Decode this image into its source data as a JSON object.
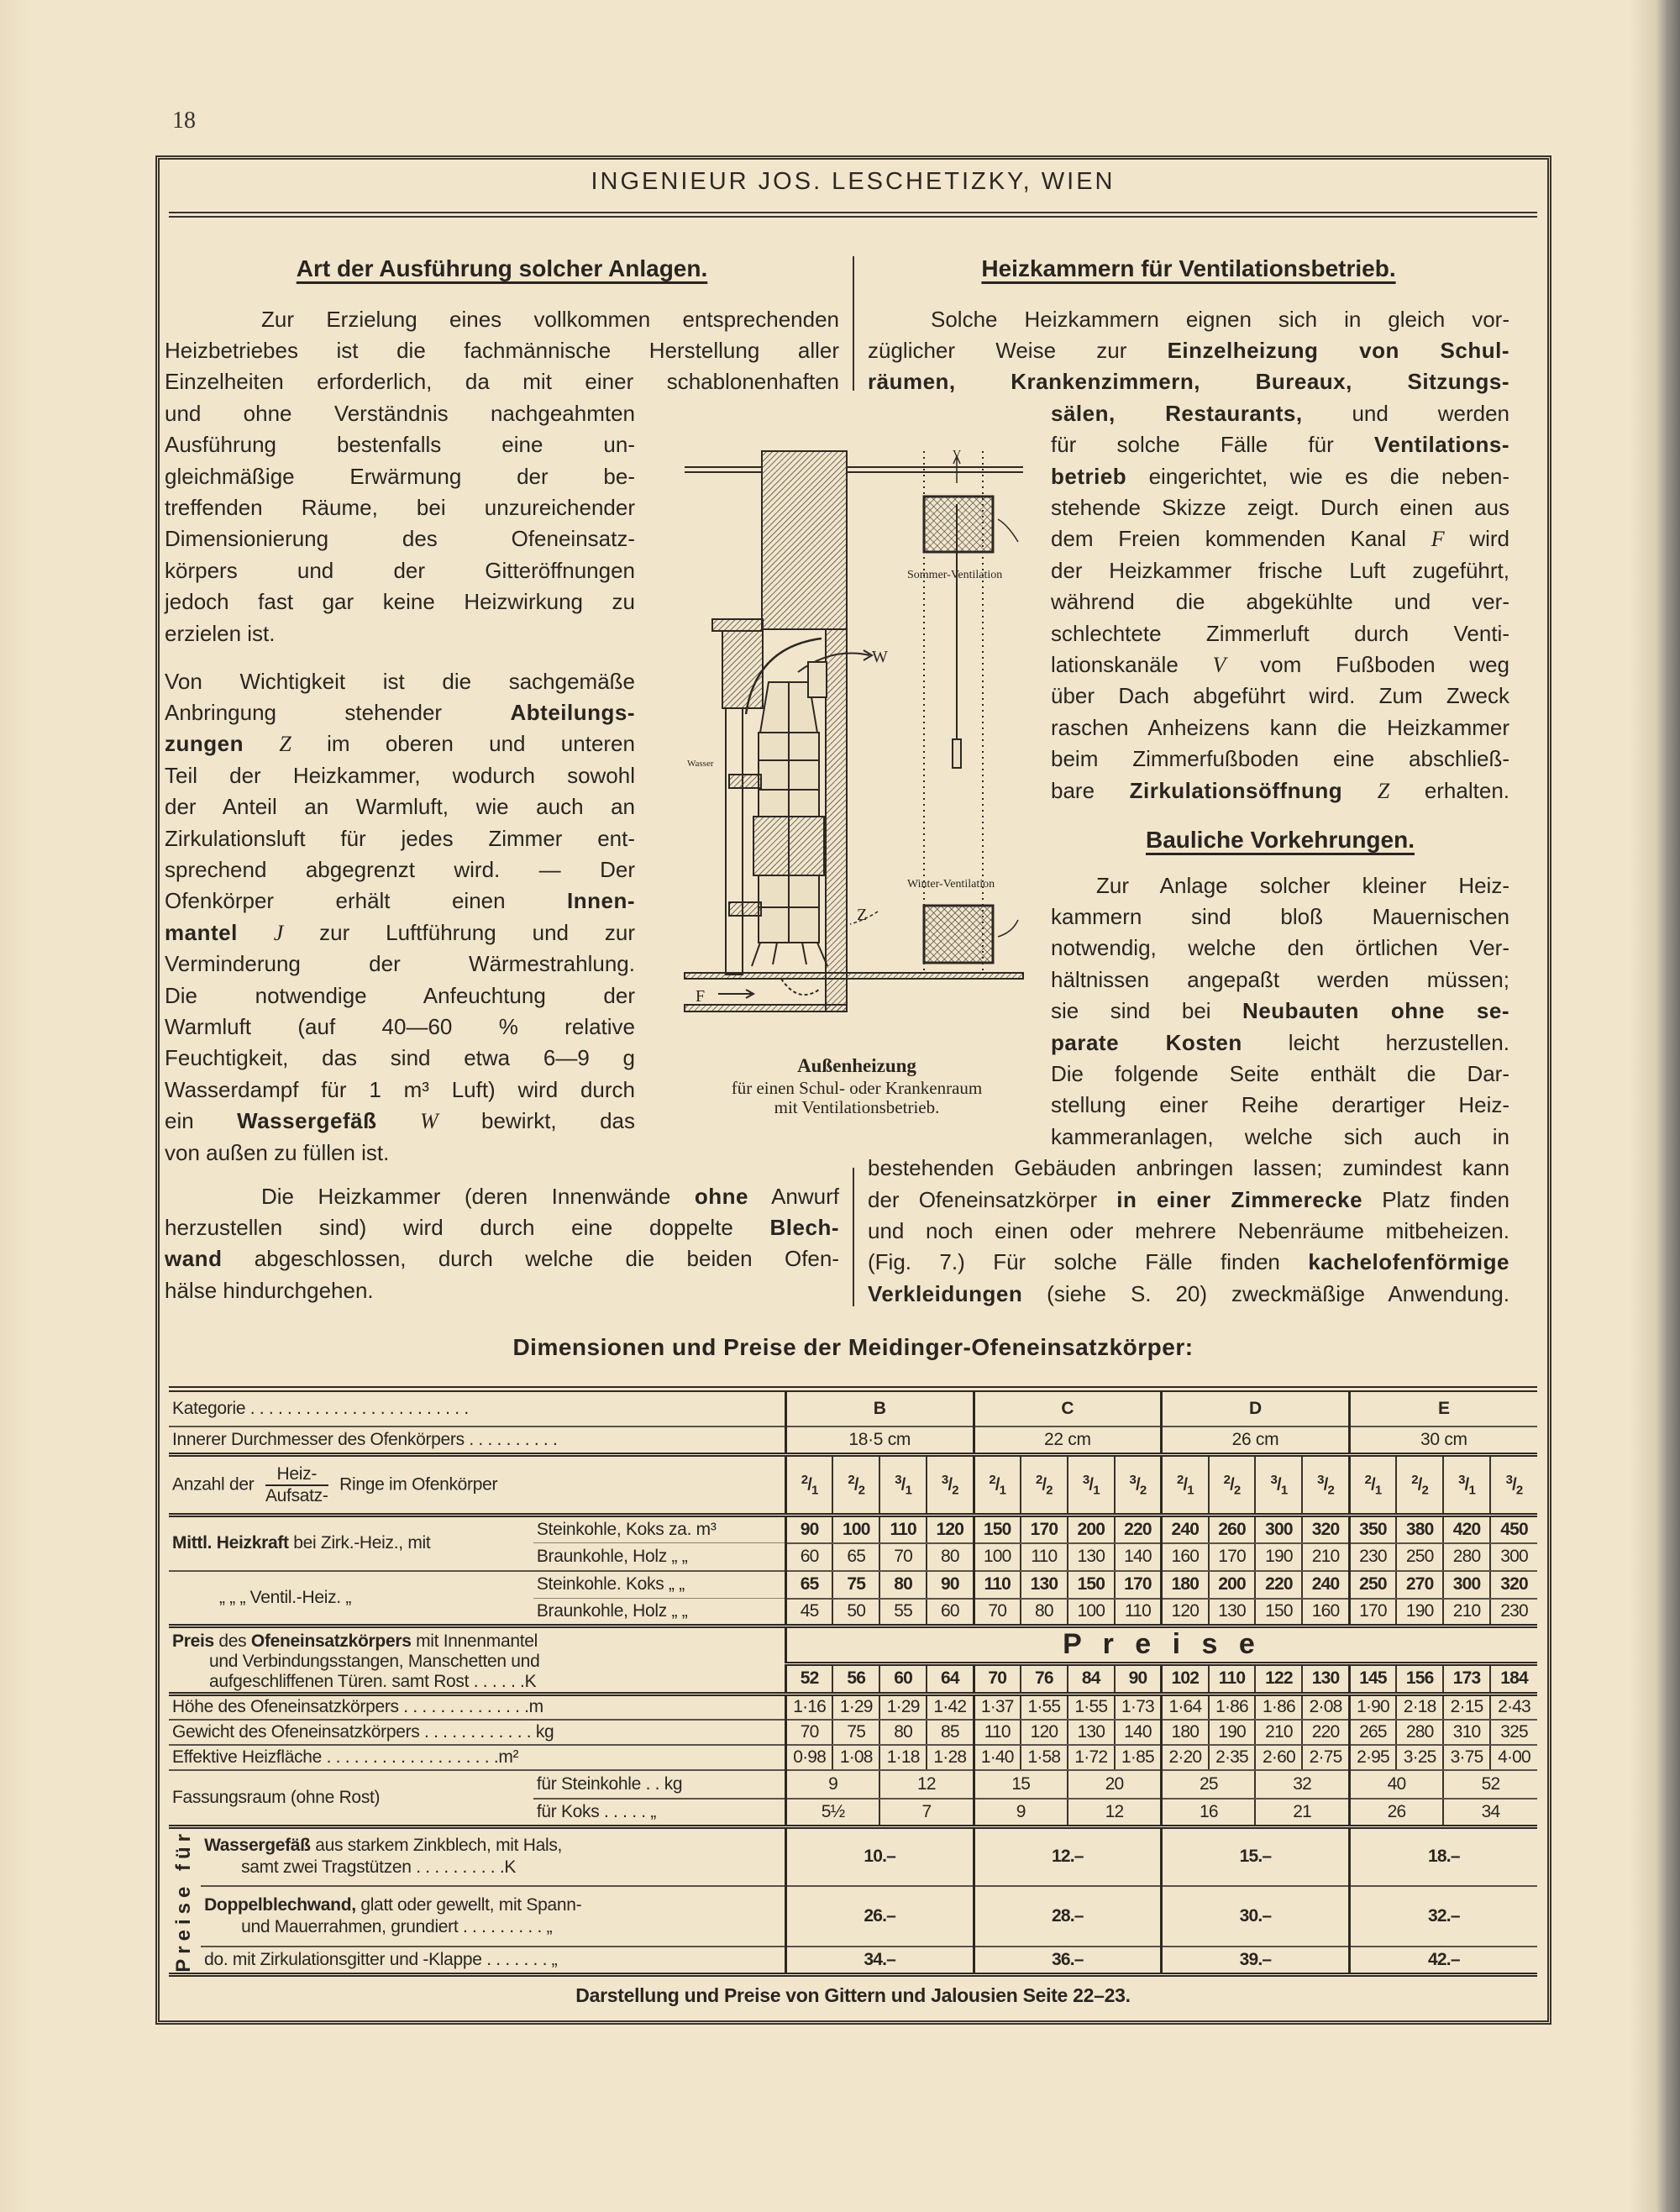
{
  "page_number": "18",
  "running_head": "INGENIEUR JOS. LESCHETIZKY, WIEN",
  "left_column": {
    "heading": "Art der Ausführung solcher Anlagen.",
    "paragraphs": [
      {
        "lines": [
          "Zur Erzielung eines vollkommen entsprechenden",
          "Heizbetriebes ist die fachmännische Herstellung aller",
          "Einzelheiten erforderlich, da mit einer schablonenhaften",
          "und ohne Verständnis nachgeahmten",
          "Ausführung bestenfalls eine un-",
          "gleichmäßige Erwärmung der be-",
          "treffenden Räume, bei unzureichender",
          "Dimensionierung des Ofeneinsatz-",
          "körpers und der Gitteröffnungen",
          "jedoch fast gar keine Heizwirkung zu",
          "erzielen ist."
        ]
      },
      {
        "lines": [
          "Von Wichtigkeit ist die sachgemäße",
          [
            "Anbringung stehender ",
            {
              "b": "Abteilungs-"
            }
          ],
          [
            {
              "b": "zungen"
            },
            " ",
            {
              "i": "Z"
            },
            " im oberen und unteren"
          ],
          "Teil der Heizkammer, wodurch sowohl",
          "der Anteil an Warmluft, wie auch an",
          "Zirkulationsluft für jedes Zimmer ent-",
          "sprechend abgegrenzt wird. — Der",
          [
            "Ofenkörper erhält einen ",
            {
              "b": "Innen-"
            }
          ],
          [
            {
              "b": "mantel"
            },
            " ",
            {
              "i": "J"
            },
            " zur Luftführung und zur"
          ],
          "Verminderung der Wärmestrahlung.",
          "Die notwendige Anfeuchtung der",
          "Warmluft (auf 40—60 % relative",
          "Feuchtigkeit, das sind etwa 6—9 g",
          "Wasserdampf für 1 m³ Luft) wird durch",
          [
            "ein ",
            {
              "b": "Wassergefäß"
            },
            " ",
            {
              "i": "W"
            },
            " bewirkt, das"
          ],
          "von außen zu füllen ist."
        ]
      },
      {
        "lines": [
          [
            "Die Heizkammer (deren Innenwände ",
            {
              "b": "ohne"
            },
            " Anwurf"
          ],
          [
            "herzustellen sind) wird durch eine doppelte ",
            {
              "b": "Blech-"
            }
          ],
          [
            {
              "b": "wand"
            },
            " abgeschlossen, durch welche die beiden Ofen-"
          ],
          "hälse hindurchgehen."
        ]
      }
    ]
  },
  "right_column": {
    "heading": "Heizkammern für Ventilationsbetrieb.",
    "paragraphs": [
      {
        "lines": [
          "Solche Heizkammern eignen sich in gleich vor-",
          [
            "züglicher Weise zur ",
            {
              "b": "Einzelheizung von Schul-"
            }
          ],
          [
            {
              "b": "räumen, Krankenzimmern, Bureaux, Sitzungs-"
            }
          ],
          [
            {
              "b": "sälen, Restaurants,"
            },
            " und werden"
          ],
          [
            "für solche Fälle für ",
            {
              "b": "Ventilations-"
            }
          ],
          [
            {
              "b": "betrieb"
            },
            " eingerichtet, wie es die neben-"
          ],
          "stehende Skizze zeigt. Durch einen aus",
          [
            "dem Freien kommenden Kanal ",
            {
              "i": "F"
            },
            " wird"
          ],
          "der Heizkammer frische Luft zugeführt,",
          "während die abgekühlte und ver-",
          "schlechtete Zimmerluft durch Venti-",
          [
            "lationskanäle ",
            {
              "i": "V"
            },
            " vom Fußboden weg"
          ],
          "über Dach abgeführt wird. Zum Zweck",
          "raschen Anheizens kann die Heizkammer",
          "beim Zimmerfußboden eine abschließ-",
          [
            "bare ",
            {
              "b": "Zirkulationsöffnung"
            },
            " ",
            {
              "i": "Z"
            },
            " erhalten."
          ]
        ]
      }
    ],
    "heading2": "Bauliche Vorkehrungen.",
    "paragraphs2": [
      {
        "lines": [
          "Zur Anlage solcher kleiner Heiz-",
          "kammern sind bloß Mauernischen",
          "notwendig, welche den örtlichen Ver-",
          "hältnissen angepaßt werden müssen;",
          [
            "sie sind bei ",
            {
              "b": "Neubauten ohne se-"
            }
          ],
          [
            {
              "b": "parate Kosten"
            },
            " leicht herzustellen."
          ],
          "Die folgende Seite enthält die Dar-",
          "stellung einer Reihe derartiger Heiz-",
          "kammeranlagen, welche sich auch in",
          "bestehenden Gebäuden anbringen lassen; zumindest kann",
          [
            "der Ofeneinsatzkörper ",
            {
              "b": "in einer Zimmerecke"
            },
            " Platz finden"
          ],
          "und noch einen oder mehrere Nebenräume mitbeheizen.",
          [
            "(Fig. 7.) Für solche Fälle finden ",
            {
              "b": "kachelofenförmige"
            }
          ],
          [
            {
              "b": "Verkleidungen"
            },
            " (siehe S. 20) zweckmäßige Anwendung."
          ]
        ]
      }
    ]
  },
  "figure": {
    "labels": {
      "v": "V",
      "w": "W",
      "z": "Z",
      "f": "F",
      "wasser": "Wasser",
      "summer": "Sommer-Ventilation",
      "winter": "Winter-Ventilation"
    },
    "caption_title": "Außenheizung",
    "caption_line1": "für einen Schul- oder Krankenraum",
    "caption_line2": "mit Ventilationsbetrieb."
  },
  "table": {
    "title": "Dimensionen und Preise der Meidinger-Ofeneinsatzkörper:",
    "kategorie_label": "Kategorie . . . . . . . . . . . . . . . .    . . . . . . . .",
    "categories": [
      "B",
      "C",
      "D",
      "E"
    ],
    "durchmesser_label": "Innerer Durchmesser des Ofenkörpers  . . . . . . . . . .",
    "durchmesser": [
      "18·5 cm",
      "22 cm",
      "26 cm",
      "30 cm"
    ],
    "anzahl_label": {
      "pre": "Anzahl der",
      "num": "Heiz-",
      "den": "Aufsatz-",
      "post": "Ringe im Ofenkörper"
    },
    "rings": [
      [
        "2",
        "1"
      ],
      [
        "2",
        "2"
      ],
      [
        "3",
        "1"
      ],
      [
        "3",
        "2"
      ]
    ],
    "heizkraft": {
      "zirk_label": [
        {
          "b": "Mittl. Heizkraft"
        },
        " bei Zirk.-Heiz., mit"
      ],
      "vent_label": "„        „        „ Ventil.-Heiz. „",
      "rows": [
        {
          "fuel": "Steinkohle, Koks za. m³",
          "bold": true,
          "values": [
            "90",
            "100",
            "110",
            "120",
            "150",
            "170",
            "200",
            "220",
            "240",
            "260",
            "300",
            "320",
            "350",
            "380",
            "420",
            "450"
          ]
        },
        {
          "fuel": "Braunkohle, Holz  „  „",
          "bold": false,
          "values": [
            "60",
            "65",
            "70",
            "80",
            "100",
            "110",
            "130",
            "140",
            "160",
            "170",
            "190",
            "210",
            "230",
            "250",
            "280",
            "300"
          ]
        },
        {
          "fuel": "Steinkohle.  Koks  „  „",
          "bold": true,
          "values": [
            "65",
            "75",
            "80",
            "90",
            "110",
            "130",
            "150",
            "170",
            "180",
            "200",
            "220",
            "240",
            "250",
            "270",
            "300",
            "320"
          ]
        },
        {
          "fuel": "Braunkohle, Holz  „  „",
          "bold": false,
          "values": [
            "45",
            "50",
            "55",
            "60",
            "70",
            "80",
            "100",
            "110",
            "120",
            "130",
            "150",
            "160",
            "170",
            "190",
            "210",
            "230"
          ]
        }
      ]
    },
    "preis": {
      "label_l1": [
        {
          "b": "Preis"
        },
        " des ",
        {
          "b": "Ofeneinsatzkörpers"
        },
        " mit Innenmantel"
      ],
      "label_l2": "und Verbindungsstangen, Manschetten und",
      "label_l3": "aufgeschliffenen Türen. samt Rost  . .      . . . .K",
      "header": "P r e i s e",
      "values": [
        "52",
        "56",
        "60",
        "64",
        "70",
        "76",
        "84",
        "90",
        "102",
        "110",
        "122",
        "130",
        "145",
        "156",
        "173",
        "184"
      ]
    },
    "hoehe": {
      "label": "Höhe des Ofeneinsatzkörpers  . . . . . . . . . . . . . .m",
      "values": [
        "1·16",
        "1·29",
        "1·29",
        "1·42",
        "1·37",
        "1·55",
        "1·55",
        "1·73",
        "1·64",
        "1·86",
        "1·86",
        "2·08",
        "1·90",
        "2·18",
        "2·15",
        "2·43"
      ]
    },
    "gewicht": {
      "label": "Gewicht des Ofeneinsatzkörpers . . . . . . . . . . . .  kg",
      "values": [
        "70",
        "75",
        "80",
        "85",
        "110",
        "120",
        "130",
        "140",
        "180",
        "190",
        "210",
        "220",
        "265",
        "280",
        "310",
        "325"
      ]
    },
    "flaeche": {
      "label": "Effektive Heizfläche . . . . . . . . . . . . . . . . . . .m²",
      "values": [
        "0·98",
        "1·08",
        "1·18",
        "1·28",
        "1·40",
        "1·58",
        "1·72",
        "1·85",
        "2·20",
        "2·35",
        "2·60",
        "2·75",
        "2·95",
        "3·25",
        "3·75",
        "4·00"
      ]
    },
    "fassung": {
      "label": "Fassungsraum (ohne Rost)",
      "stein_label": "für Steinkohle  .   . kg",
      "stein": [
        "9",
        "12",
        "15",
        "20",
        "25",
        "32",
        "40",
        "52"
      ],
      "koks_label": "für Koks . . .    . . „",
      "koks": [
        "5½",
        "7",
        "9",
        "12",
        "16",
        "21",
        "26",
        "34"
      ]
    },
    "preise_fuer_label": "Preise für",
    "wasser": {
      "label_l1": [
        {
          "b": "Wassergefäß"
        },
        " aus starkem Zinkblech, mit Hals,"
      ],
      "label_l2": "samt zwei Tragstützen   . . .   . . .   . . . .K",
      "values": [
        "10.–",
        "12.–",
        "15.–",
        "18.–"
      ]
    },
    "doppel": {
      "label_l1": [
        {
          "b": "Doppelblechwand,"
        },
        " glatt oder gewellt, mit Spann-"
      ],
      "label_l2": "und Mauerrahmen, grundiert  . . . . . . . . . „",
      "values": [
        "26.–",
        "28.–",
        "30.–",
        "32.–"
      ]
    },
    "zirk": {
      "label": "do. mit Zirkulationsgitter und -Klappe  . . . . . . . „",
      "values": [
        "34.–",
        "36.–",
        "39.–",
        "42.–"
      ]
    },
    "footer": "Darstellung und Preise von Gittern und Jalousien Seite 22–23."
  }
}
